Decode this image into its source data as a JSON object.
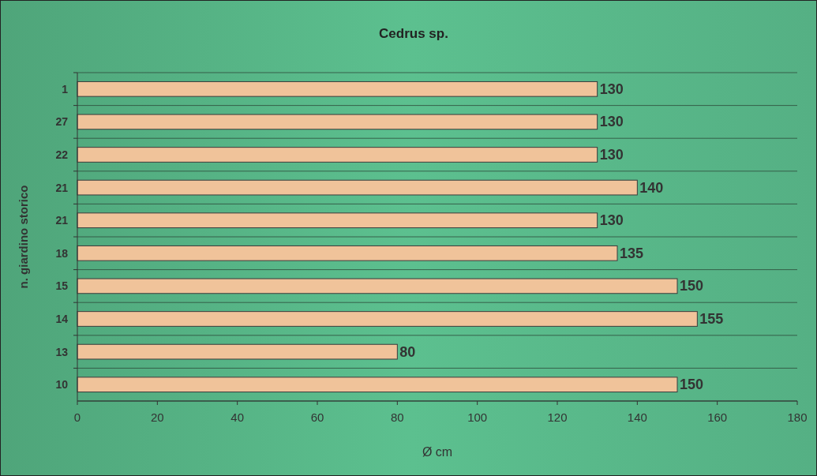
{
  "chart_data": {
    "type": "bar",
    "orientation": "horizontal",
    "title": "Cedrus sp.",
    "xlabel": "Ø cm",
    "ylabel": "n. giardino storico",
    "categories": [
      "1",
      "27",
      "22",
      "21",
      "21",
      "18",
      "15",
      "14",
      "13",
      "10"
    ],
    "values": [
      130,
      130,
      130,
      140,
      130,
      135,
      150,
      155,
      80,
      150
    ],
    "color": "#f0c39a",
    "xlim": [
      0,
      180
    ],
    "xticks": [
      0,
      20,
      40,
      60,
      80,
      100,
      120,
      140,
      160,
      180
    ],
    "grid": "y",
    "data_labels": true
  }
}
